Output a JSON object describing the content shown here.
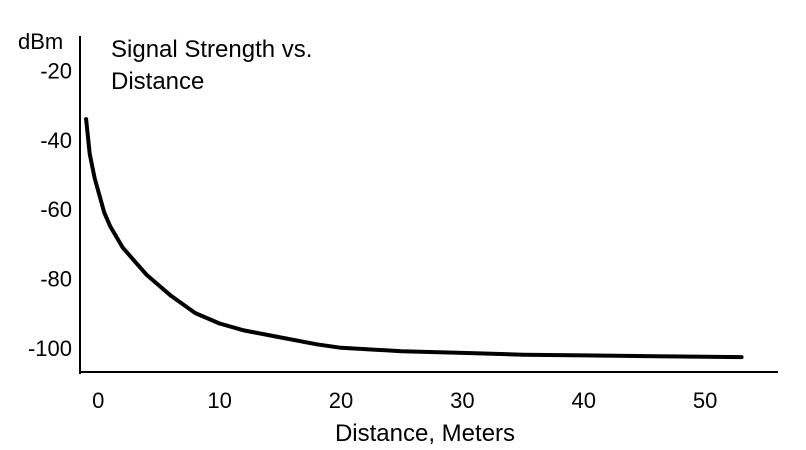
{
  "chart_data": {
    "type": "line",
    "title_lines": [
      "Signal Strength vs.",
      "Distance"
    ],
    "xlabel": "Distance, Meters",
    "ylabel": "dBm",
    "xlim": [
      -1.5,
      56
    ],
    "ylim": [
      -107,
      -10
    ],
    "x_ticks": [
      0,
      10,
      20,
      30,
      40,
      50
    ],
    "y_ticks": [
      -20,
      -40,
      -60,
      -80,
      -100
    ],
    "grid": false,
    "series": [
      {
        "color": "#000000",
        "x": [
          -1,
          -0.7,
          -0.3,
          0.5,
          1,
          2,
          3,
          4,
          5,
          6,
          8,
          10,
          12,
          15,
          18,
          20,
          25,
          30,
          35,
          40,
          45,
          50,
          53
        ],
        "y": [
          -34,
          -44,
          -51,
          -61,
          -65,
          -71,
          -75,
          -79,
          -82,
          -85,
          -90,
          -93,
          -95,
          -97,
          -99,
          -100,
          -101,
          -101.5,
          -102,
          -102.2,
          -102.4,
          -102.6,
          -102.7
        ]
      }
    ]
  }
}
